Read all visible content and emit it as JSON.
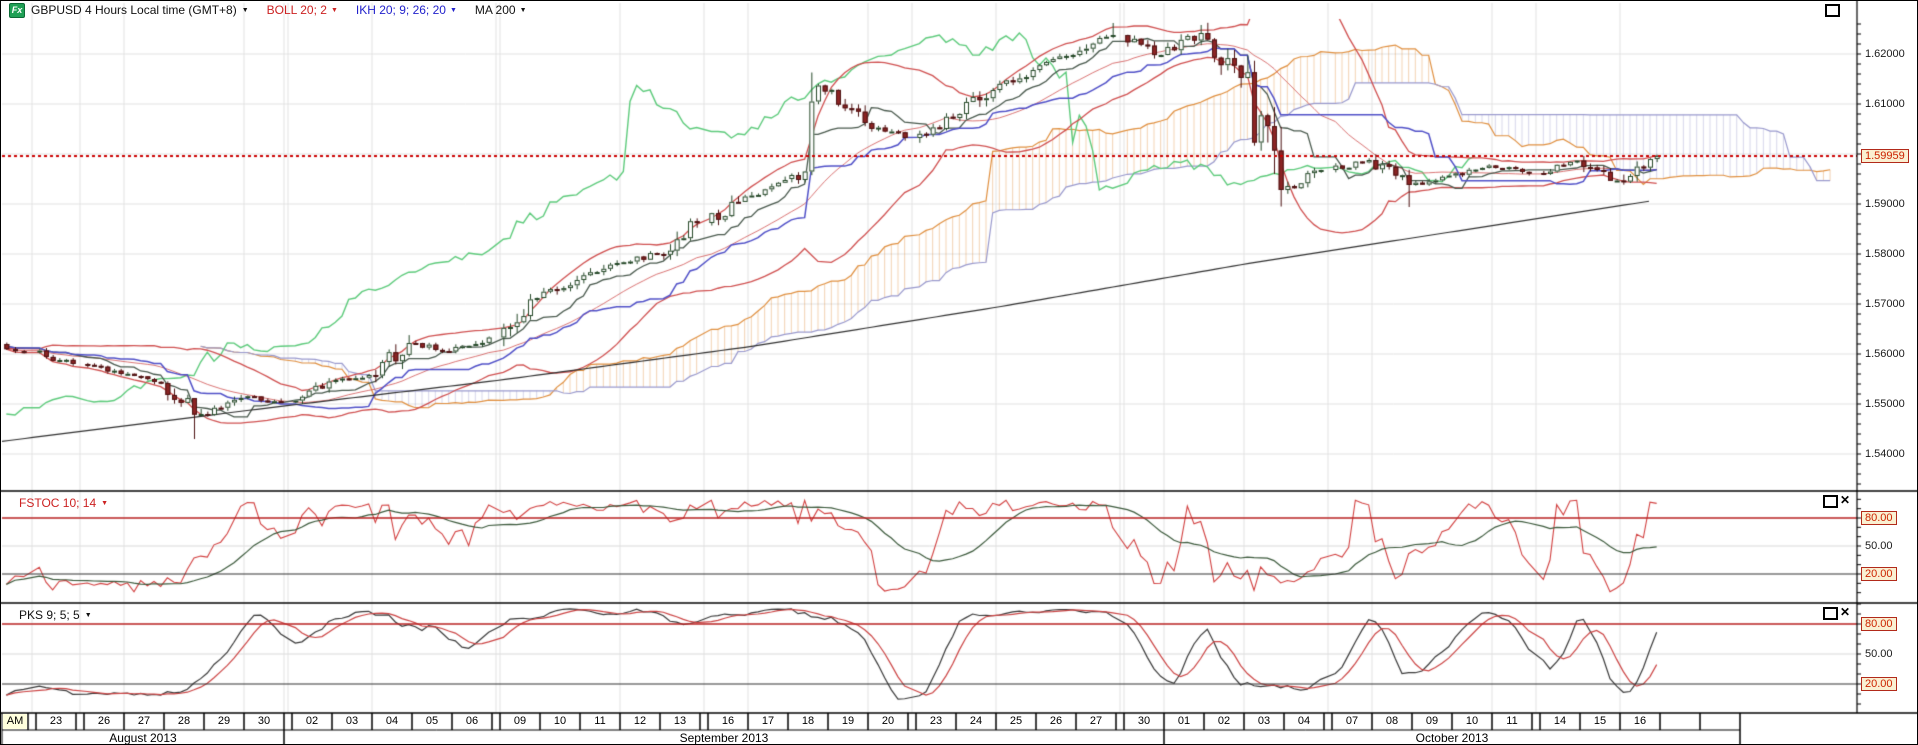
{
  "icons": {
    "dropdown": "▼",
    "close": "✕"
  },
  "header": {
    "symbol_badge": "Fx",
    "title": "GBPUSD 4 Hours Local time (GMT+8)",
    "indicators": [
      {
        "label": "BOLL 20; 2",
        "color": "#cc2222"
      },
      {
        "label": "IKH 20; 9; 26; 20",
        "color": "#2222cc"
      },
      {
        "label": "MA 200",
        "color": "#111111"
      }
    ]
  },
  "panels": [
    {
      "label": "FSTOC 10; 14",
      "color": "#cc2222",
      "levels": [
        {
          "text": "80.00",
          "v": 80,
          "boxed": true
        },
        {
          "text": "50.00",
          "v": 50,
          "boxed": false
        },
        {
          "text": "20.00",
          "v": 20,
          "boxed": true
        }
      ]
    },
    {
      "label": "PKS 9; 5; 5",
      "color": "#111111",
      "levels": [
        {
          "text": "80.00",
          "v": 80,
          "boxed": true
        },
        {
          "text": "50.00",
          "v": 50,
          "boxed": false
        },
        {
          "text": "20.00",
          "v": 20,
          "boxed": true
        }
      ]
    }
  ],
  "chart_data": {
    "type": "candlestick",
    "instrument": "GBPUSD",
    "timeframe": "4 Hours",
    "title": "GBPUSD 4 Hours Local time (GMT+8)",
    "ylim": [
      1.535,
      1.63
    ],
    "grid": true,
    "price_axis": {
      "labels": [
        {
          "text": "1.62000",
          "v": 1.62
        },
        {
          "text": "1.61000",
          "v": 1.61
        },
        {
          "text": "1.59000",
          "v": 1.59
        },
        {
          "text": "1.58000",
          "v": 1.58
        },
        {
          "text": "1.57000",
          "v": 1.57
        },
        {
          "text": "1.56000",
          "v": 1.56
        },
        {
          "text": "1.55000",
          "v": 1.55
        },
        {
          "text": "1.54000",
          "v": 1.54
        }
      ],
      "current": {
        "text": "1.59959",
        "v": 1.59959
      }
    },
    "start_price": 1.562,
    "months": [
      {
        "label": "August 2013",
        "cells": [
          "AM",
          "|",
          "23",
          "|",
          "26",
          "27",
          "28",
          "29",
          "30"
        ]
      },
      {
        "label": "September 2013",
        "cells": [
          "|",
          "02",
          "03",
          "04",
          "05",
          "06",
          "|",
          "09",
          "10",
          "11",
          "12",
          "13",
          "|",
          "16",
          "17",
          "18",
          "19",
          "20",
          "|",
          "23",
          "24",
          "25",
          "26",
          "27",
          "|",
          "30"
        ]
      },
      {
        "label": "October 2013",
        "cells": [
          "01",
          "02",
          "03",
          "04",
          "|",
          "07",
          "08",
          "09",
          "10",
          "11",
          "|",
          "14",
          "15",
          "16",
          "",
          ""
        ]
      }
    ],
    "day_values": [
      {
        "d": "AM",
        "c": 1.5605
      },
      {
        "d": "23",
        "c": 1.558
      },
      {
        "d": "26",
        "c": 1.556
      },
      {
        "d": "27",
        "c": 1.5542
      },
      {
        "d": "28",
        "c": 1.548,
        "low": 1.543
      },
      {
        "d": "29",
        "c": 1.5512
      },
      {
        "d": "30",
        "c": 1.5505
      },
      {
        "d": "02",
        "c": 1.5545
      },
      {
        "d": "03",
        "c": 1.5558
      },
      {
        "d": "04",
        "c": 1.5622
      },
      {
        "d": "05",
        "c": 1.5605
      },
      {
        "d": "06",
        "c": 1.5633
      },
      {
        "d": "09",
        "c": 1.5712
      },
      {
        "d": "10",
        "c": 1.5748
      },
      {
        "d": "11",
        "c": 1.5782
      },
      {
        "d": "12",
        "c": 1.58
      },
      {
        "d": "13",
        "c": 1.5862
      },
      {
        "d": "16",
        "c": 1.5915
      },
      {
        "d": "17",
        "c": 1.5948
      },
      {
        "d": "18",
        "o": 1.595,
        "c": 1.6125,
        "high": 1.6163,
        "spike": true
      },
      {
        "d": "19",
        "c": 1.6062
      },
      {
        "d": "20",
        "c": 1.6032
      },
      {
        "d": "23",
        "c": 1.6072
      },
      {
        "d": "24",
        "c": 1.6128
      },
      {
        "d": "25",
        "c": 1.6168
      },
      {
        "d": "26",
        "c": 1.6198
      },
      {
        "d": "27",
        "c": 1.6238,
        "high": 1.6262
      },
      {
        "d": "30",
        "c": 1.6198
      },
      {
        "d": "01",
        "c": 1.6242,
        "high": 1.6258
      },
      {
        "d": "02",
        "c": 1.6152
      },
      {
        "d": "03",
        "c": 1.5928,
        "low": 1.5895
      },
      {
        "d": "04",
        "c": 1.5968
      },
      {
        "d": "07",
        "c": 1.5988
      },
      {
        "d": "08",
        "c": 1.5938,
        "low": 1.5894
      },
      {
        "d": "09",
        "c": 1.5957
      },
      {
        "d": "10",
        "c": 1.5977
      },
      {
        "d": "11",
        "c": 1.5962
      },
      {
        "d": "14",
        "c": 1.5987
      },
      {
        "d": "15",
        "c": 1.5947
      },
      {
        "d": "16",
        "c": 1.59959
      }
    ],
    "ma200_anchors": [
      [
        0,
        1.5425
      ],
      [
        250,
        1.5488
      ],
      [
        500,
        1.5548
      ],
      [
        750,
        1.5615
      ],
      [
        1000,
        1.5695
      ],
      [
        1250,
        1.5782
      ],
      [
        1656,
        1.5908
      ]
    ],
    "indicators": {
      "bollinger": "BOLL 20; 2",
      "ichimoku": "IKH 20; 9; 26; 20",
      "moving_average": "MA 200",
      "fast_stochastic": "FSTOC 10; 14",
      "slow_stochastic": "PKS 9; 5; 5"
    },
    "colors": {
      "up_candle": "#ffffff",
      "up_stroke": "#274a2a",
      "down_candle": "#8b2424",
      "down_stroke": "#4d1212",
      "bollinger": "#d05050",
      "kijun": "#5050c8",
      "tenkan": "#49594d",
      "chikou": "#5ecb7c",
      "cloud_bull": "#e09040",
      "cloud_bear": "#9a9ace",
      "ma200": "#303030",
      "grid": "#e3e3e3",
      "level_red": "#b82020",
      "level_dark": "#303030",
      "current_line": "#cc0000",
      "fstoc_k": "#d24040",
      "fstoc_d": "#3c5a3c",
      "pks_k": "#3a3a3a",
      "pks_d": "#cc4444"
    }
  }
}
